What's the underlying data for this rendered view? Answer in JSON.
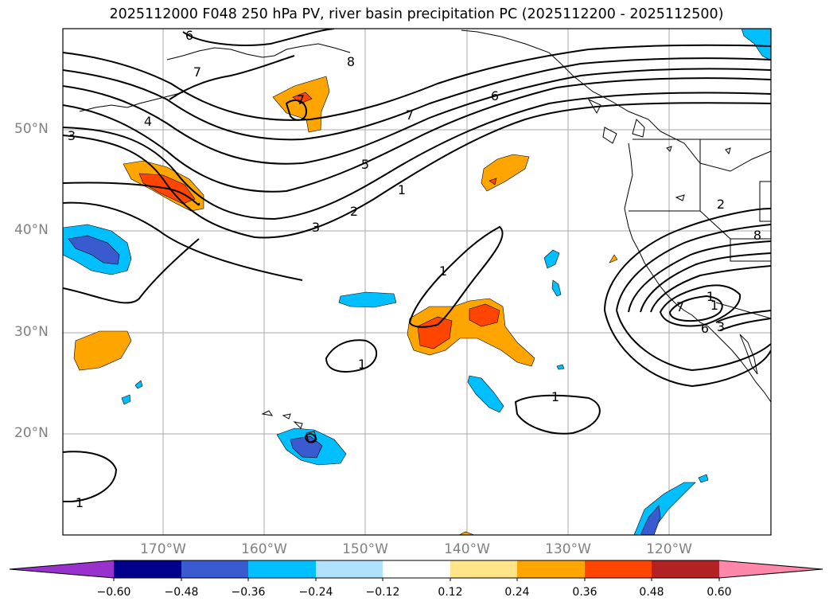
{
  "title": "2025112000 F048 250 hPa PV, river basin precipitation PC (2025112200 - 2025112500)",
  "lat_labels": [
    "50°N",
    "40°N",
    "30°N",
    "20°N"
  ],
  "lon_labels": [
    "170°W",
    "160°W",
    "150°W",
    "140°W",
    "130°W",
    "120°W"
  ],
  "pv_contour_labels": [
    "6",
    "7",
    "8",
    "7",
    "6",
    "7",
    "4",
    "3",
    "5",
    "2",
    "3",
    "1",
    "1",
    "1",
    "1",
    "1",
    "1",
    "7",
    "8",
    "6",
    "3",
    "2",
    "1"
  ],
  "colorbar": {
    "ticks": [
      "−0.60",
      "−0.48",
      "−0.36",
      "−0.24",
      "−0.12",
      "0.12",
      "0.24",
      "0.36",
      "0.48",
      "0.60"
    ],
    "colors": [
      "#9932cc",
      "#00008b",
      "#3a5bcf",
      "#00bfff",
      "#b0e2ff",
      "#ffffff",
      "#ffe48a",
      "#ffa500",
      "#ff4500",
      "#b22222",
      "#ff88aa"
    ]
  }
}
